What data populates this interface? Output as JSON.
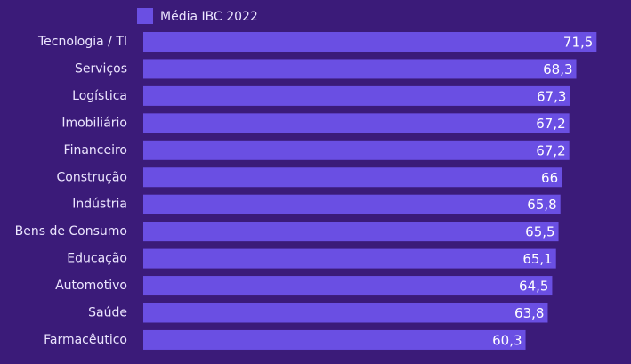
{
  "chart_data": {
    "type": "hbar",
    "categories": [
      "Tecnologia / TI",
      "Serviços",
      "Logística",
      "Imobiliário",
      "Financeiro",
      "Construção",
      "Indústria",
      "Bens de Consumo",
      "Educação",
      "Automotivo",
      "Saúde",
      "Farmacêutico"
    ],
    "series": [
      {
        "name": "Média IBC 2022",
        "color": "#6a4fe3",
        "values": [
          71.5,
          68.3,
          67.3,
          67.2,
          67.2,
          66,
          65.8,
          65.5,
          65.1,
          64.5,
          63.8,
          60.3
        ],
        "value_labels": [
          "71,5",
          "68,3",
          "67,3",
          "67,2",
          "67,2",
          "66",
          "65,8",
          "65,5",
          "65,1",
          "64,5",
          "63,8",
          "60,3"
        ]
      }
    ],
    "xlim": [
      0,
      73
    ]
  }
}
